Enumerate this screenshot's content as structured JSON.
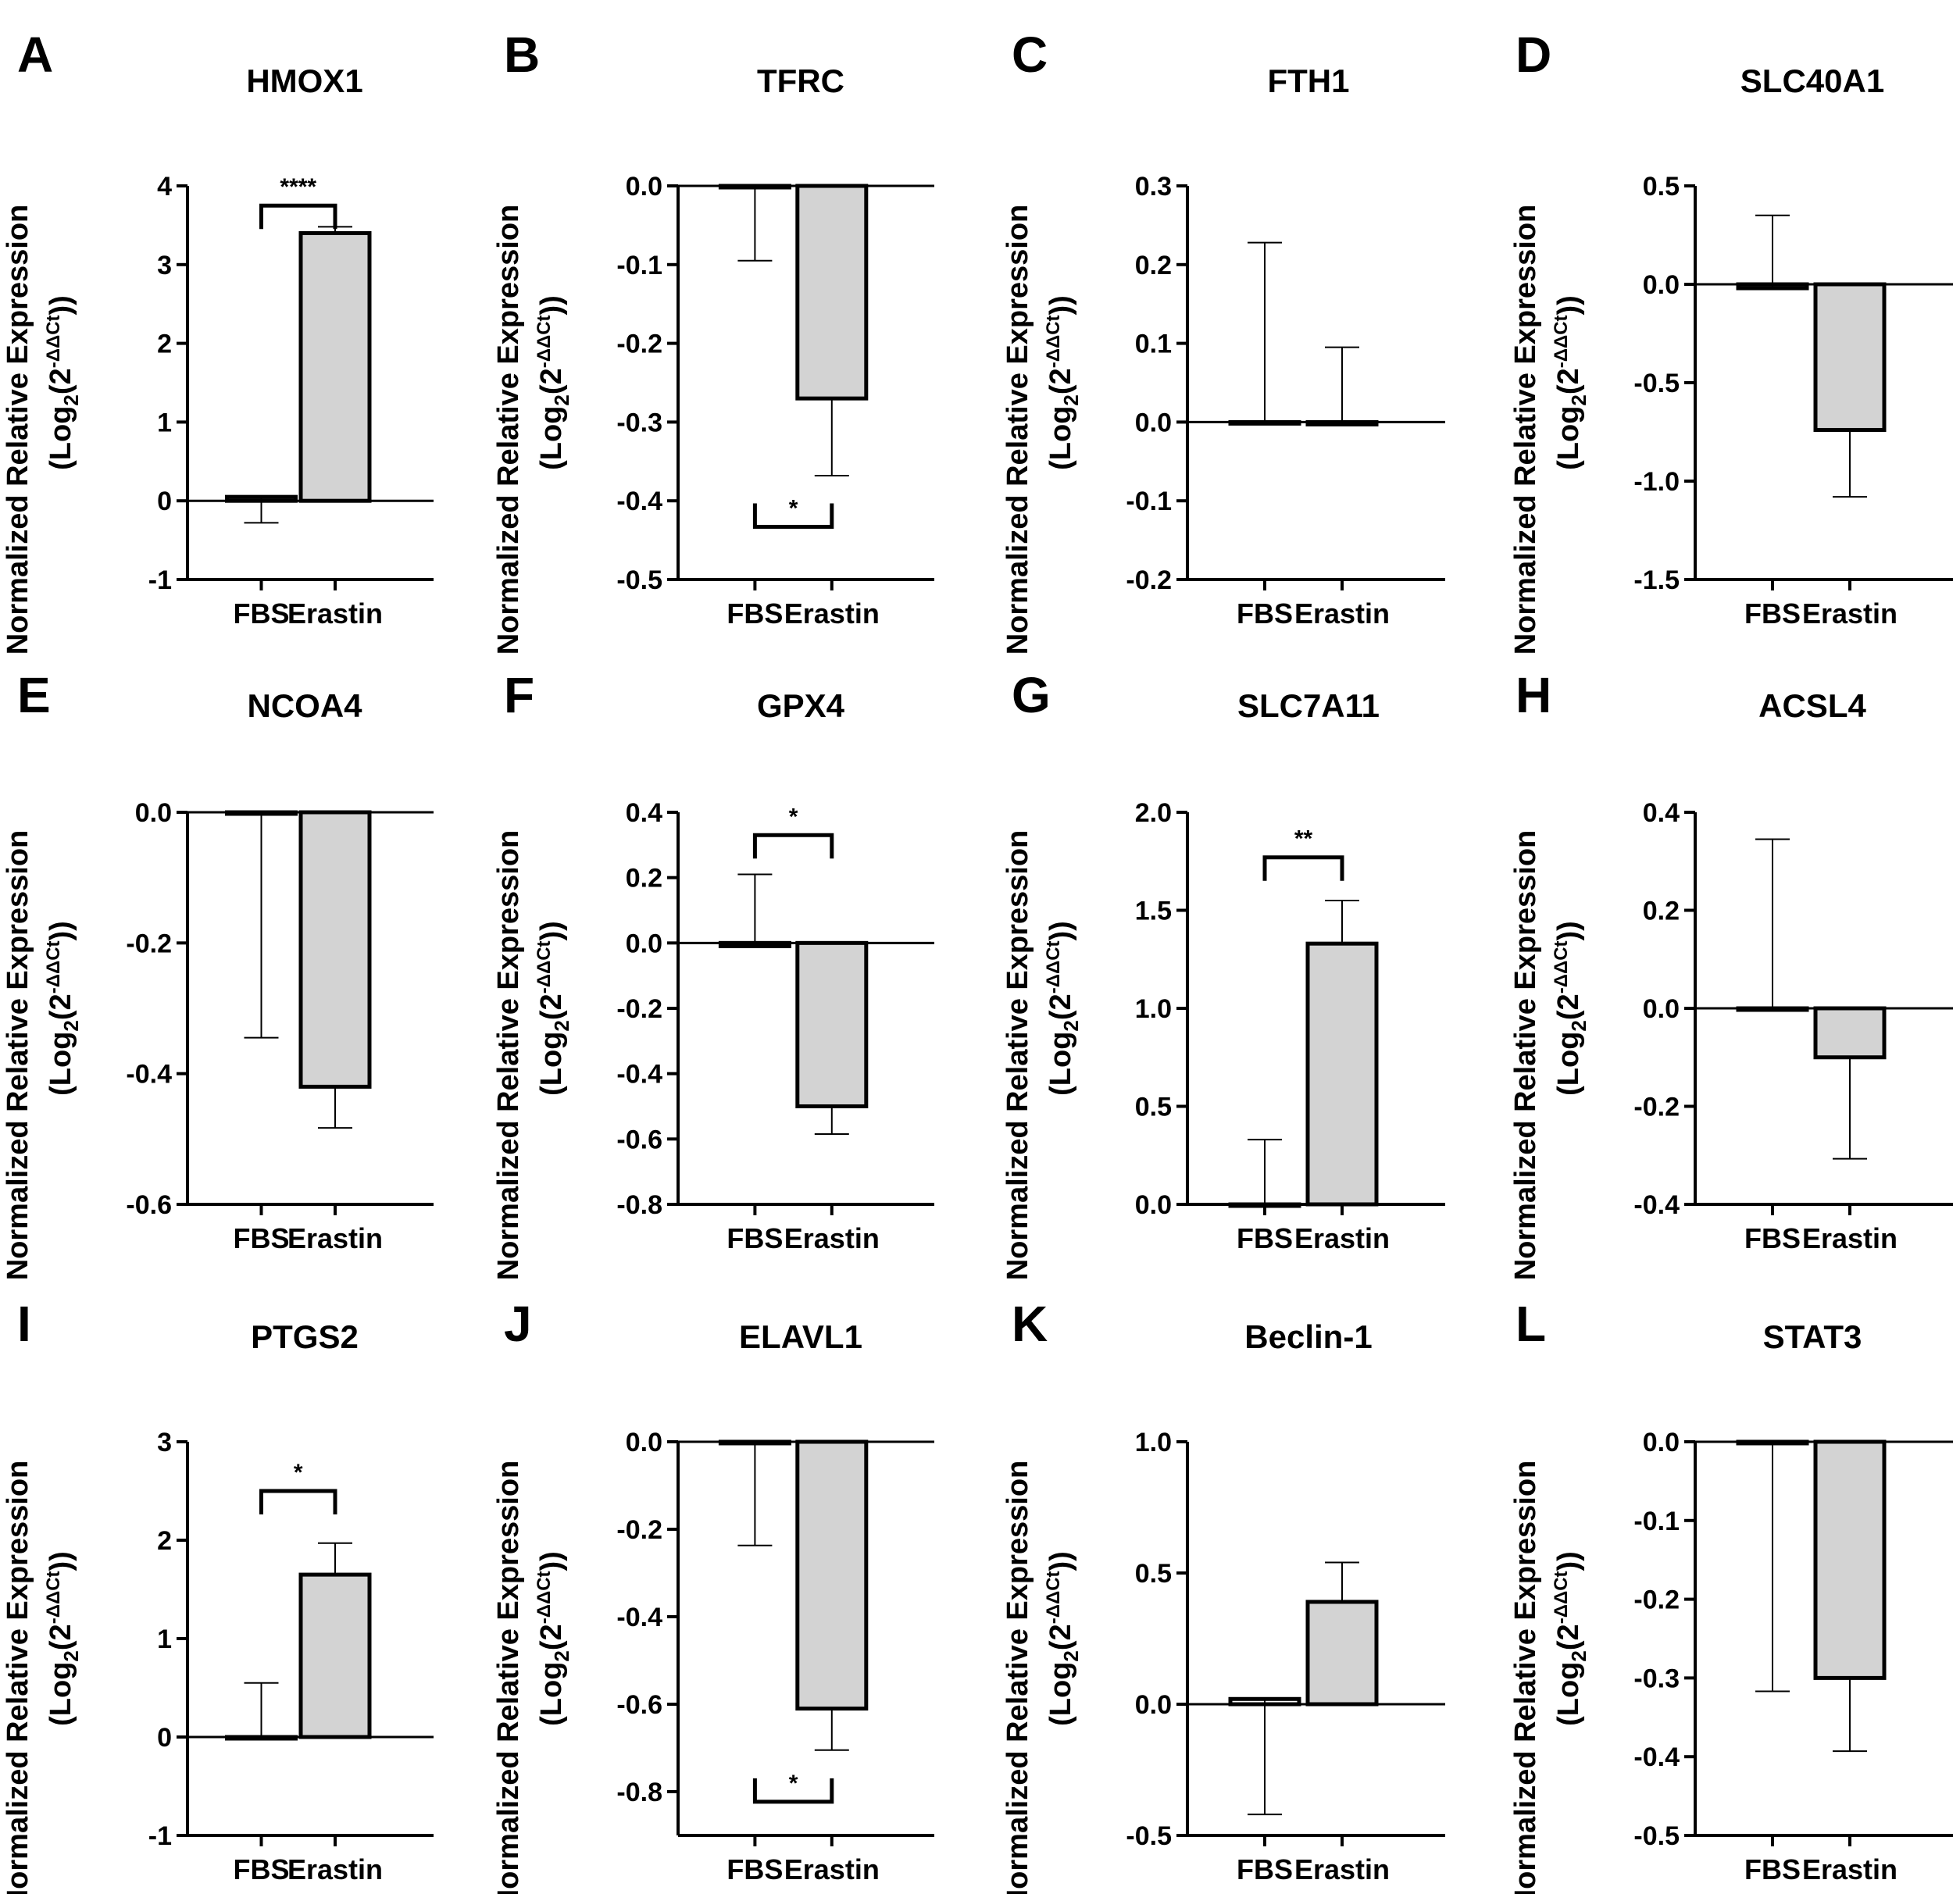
{
  "figure": {
    "y_axis_label_line1": "Normalized Relative Expression",
    "y_axis_label_line2": {
      "prefix": "(Log",
      "sub": "2",
      "mid": "(2",
      "sup": "-ΔΔCt",
      "suffix": "))"
    },
    "colors": {
      "fbs_bar": "#ffffff",
      "erastin_bar": "#d3d3d3",
      "stroke": "#000000"
    }
  },
  "chart_data": [
    {
      "panel": "A",
      "title": "HMOX1",
      "type": "bar",
      "categories": [
        "FBS",
        "Erastin"
      ],
      "values": [
        0.05,
        3.4
      ],
      "error": [
        {
          "dir": "down",
          "to": -0.28
        },
        {
          "dir": "up",
          "to": 3.48
        }
      ],
      "ylim": [
        -1,
        4
      ],
      "yticks": [
        "-1",
        "0",
        "1",
        "2",
        "3",
        "4"
      ],
      "tick_values": [
        -1,
        0,
        1,
        2,
        3,
        4
      ],
      "significance": {
        "label": "****",
        "y": 3.75,
        "dir": "down"
      }
    },
    {
      "panel": "B",
      "title": "TFRC",
      "type": "bar",
      "categories": [
        "FBS",
        "Erastin"
      ],
      "values": [
        0.0,
        -0.27
      ],
      "error": [
        {
          "dir": "down",
          "to": -0.095
        },
        {
          "dir": "down",
          "to": -0.368
        }
      ],
      "ylim": [
        -0.5,
        0.0
      ],
      "yticks": [
        "-0.5",
        "-0.4",
        "-0.3",
        "-0.2",
        "-0.1",
        "0.0"
      ],
      "tick_values": [
        -0.5,
        -0.4,
        -0.3,
        -0.2,
        -0.1,
        0.0
      ],
      "significance": {
        "label": "*",
        "y": -0.433,
        "dir": "up"
      }
    },
    {
      "panel": "C",
      "title": "FTH1",
      "type": "bar",
      "categories": [
        "FBS",
        "Erastin"
      ],
      "values": [
        0.0,
        -0.003
      ],
      "error": [
        {
          "dir": "up",
          "to": 0.228
        },
        {
          "dir": "up",
          "to": 0.095
        }
      ],
      "ylim": [
        -0.2,
        0.3
      ],
      "yticks": [
        "-0.2",
        "-0.1",
        "0.0",
        "0.1",
        "0.2",
        "0.3"
      ],
      "tick_values": [
        -0.2,
        -0.1,
        0.0,
        0.1,
        0.2,
        0.3
      ],
      "significance": null
    },
    {
      "panel": "D",
      "title": "SLC40A1",
      "type": "bar",
      "categories": [
        "FBS",
        "Erastin"
      ],
      "values": [
        -0.02,
        -0.74
      ],
      "error": [
        {
          "dir": "up",
          "to": 0.35
        },
        {
          "dir": "down",
          "to": -1.08
        }
      ],
      "ylim": [
        -1.5,
        0.5
      ],
      "yticks": [
        "-1.5",
        "-1.0",
        "-0.5",
        "0.0",
        "0.5"
      ],
      "tick_values": [
        -1.5,
        -1.0,
        -0.5,
        0.0,
        0.5
      ],
      "significance": null
    },
    {
      "panel": "E",
      "title": "NCOA4",
      "type": "bar",
      "categories": [
        "FBS",
        "Erastin"
      ],
      "values": [
        0.0,
        -0.42
      ],
      "error": [
        {
          "dir": "down",
          "to": -0.345
        },
        {
          "dir": "down",
          "to": -0.483
        }
      ],
      "ylim": [
        -0.6,
        0.0
      ],
      "yticks": [
        "-0.6",
        "-0.4",
        "-0.2",
        "0.0"
      ],
      "tick_values": [
        -0.6,
        -0.4,
        -0.2,
        0.0
      ],
      "significance": null
    },
    {
      "panel": "F",
      "title": "GPX4",
      "type": "bar",
      "categories": [
        "FBS",
        "Erastin"
      ],
      "values": [
        -0.01,
        -0.5
      ],
      "error": [
        {
          "dir": "up",
          "to": 0.21
        },
        {
          "dir": "down",
          "to": -0.585
        }
      ],
      "ylim": [
        -0.8,
        0.4
      ],
      "yticks": [
        "-0.8",
        "-0.6",
        "-0.4",
        "-0.2",
        "0.0",
        "0.2",
        "0.4"
      ],
      "tick_values": [
        -0.8,
        -0.6,
        -0.4,
        -0.2,
        0.0,
        0.2,
        0.4
      ],
      "significance": {
        "label": "*",
        "y": 0.33,
        "dir": "down"
      }
    },
    {
      "panel": "G",
      "title": "SLC7A11",
      "type": "bar",
      "categories": [
        "FBS",
        "Erastin"
      ],
      "values": [
        0.0,
        1.33
      ],
      "error": [
        {
          "dir": "up",
          "to": 0.33
        },
        {
          "dir": "up",
          "to": 1.55
        }
      ],
      "ylim": [
        0.0,
        2.0
      ],
      "yticks": [
        "0.0",
        "0.5",
        "1.0",
        "1.5",
        "2.0"
      ],
      "tick_values": [
        0.0,
        0.5,
        1.0,
        1.5,
        2.0
      ],
      "significance": {
        "label": "**",
        "y": 1.77,
        "dir": "down"
      }
    },
    {
      "panel": "H",
      "title": "ACSL4",
      "type": "bar",
      "categories": [
        "FBS",
        "Erastin"
      ],
      "values": [
        0.0,
        -0.1
      ],
      "error": [
        {
          "dir": "up",
          "to": 0.345
        },
        {
          "dir": "down",
          "to": -0.307
        }
      ],
      "ylim": [
        -0.4,
        0.4
      ],
      "yticks": [
        "-0.4",
        "-0.2",
        "0.0",
        "0.2",
        "0.4"
      ],
      "tick_values": [
        -0.4,
        -0.2,
        0.0,
        0.2,
        0.4
      ],
      "significance": null
    },
    {
      "panel": "I",
      "title": "PTGS2",
      "type": "bar",
      "categories": [
        "FBS",
        "Erastin"
      ],
      "values": [
        0.0,
        1.65
      ],
      "error": [
        {
          "dir": "up",
          "to": 0.55
        },
        {
          "dir": "up",
          "to": 1.97
        }
      ],
      "ylim": [
        -1,
        3
      ],
      "yticks": [
        "-1",
        "0",
        "1",
        "2",
        "3"
      ],
      "tick_values": [
        -1,
        0,
        1,
        2,
        3
      ],
      "significance": {
        "label": "*",
        "y": 2.5,
        "dir": "down"
      }
    },
    {
      "panel": "J",
      "title": "ELAVL1",
      "type": "bar",
      "categories": [
        "FBS",
        "Erastin"
      ],
      "values": [
        0.0,
        -0.61
      ],
      "error": [
        {
          "dir": "down",
          "to": -0.237
        },
        {
          "dir": "down",
          "to": -0.705
        }
      ],
      "ylim": [
        -0.9,
        0.0
      ],
      "yticks": [
        "-0.8",
        "-0.6",
        "-0.4",
        "-0.2",
        "0.0"
      ],
      "tick_values": [
        -0.8,
        -0.6,
        -0.4,
        -0.2,
        0.0
      ],
      "significance": {
        "label": "*",
        "y": -0.823,
        "dir": "up"
      }
    },
    {
      "panel": "K",
      "title": "Beclin-1",
      "type": "bar",
      "categories": [
        "FBS",
        "Erastin"
      ],
      "values": [
        0.02,
        0.39
      ],
      "error": [
        {
          "dir": "down",
          "to": -0.42
        },
        {
          "dir": "up",
          "to": 0.54
        }
      ],
      "ylim": [
        -0.5,
        1.0
      ],
      "yticks": [
        "-0.5",
        "0.0",
        "0.5",
        "1.0"
      ],
      "tick_values": [
        -0.5,
        0.0,
        0.5,
        1.0
      ],
      "significance": null
    },
    {
      "panel": "L",
      "title": "STAT3",
      "type": "bar",
      "categories": [
        "FBS",
        "Erastin"
      ],
      "values": [
        0.0,
        -0.3
      ],
      "error": [
        {
          "dir": "down",
          "to": -0.317
        },
        {
          "dir": "down",
          "to": -0.393
        }
      ],
      "ylim": [
        -0.5,
        0.0
      ],
      "yticks": [
        "-0.5",
        "-0.4",
        "-0.3",
        "-0.2",
        "-0.1",
        "0.0"
      ],
      "tick_values": [
        -0.5,
        -0.4,
        -0.3,
        -0.2,
        -0.1,
        0.0
      ],
      "significance": null
    }
  ]
}
